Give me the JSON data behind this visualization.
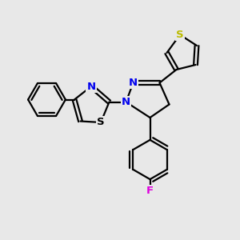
{
  "bg_color": "#e8e8e8",
  "bond_lw": 1.6,
  "atom_colors": {
    "N": "#0000ee",
    "S_thiophene": "#bbbb00",
    "S_thiazole": "#000000",
    "F": "#dd00dd",
    "C": "#000000"
  },
  "xlim": [
    0,
    10
  ],
  "ylim": [
    0,
    10
  ],
  "figsize": [
    3.0,
    3.0
  ],
  "dpi": 100
}
